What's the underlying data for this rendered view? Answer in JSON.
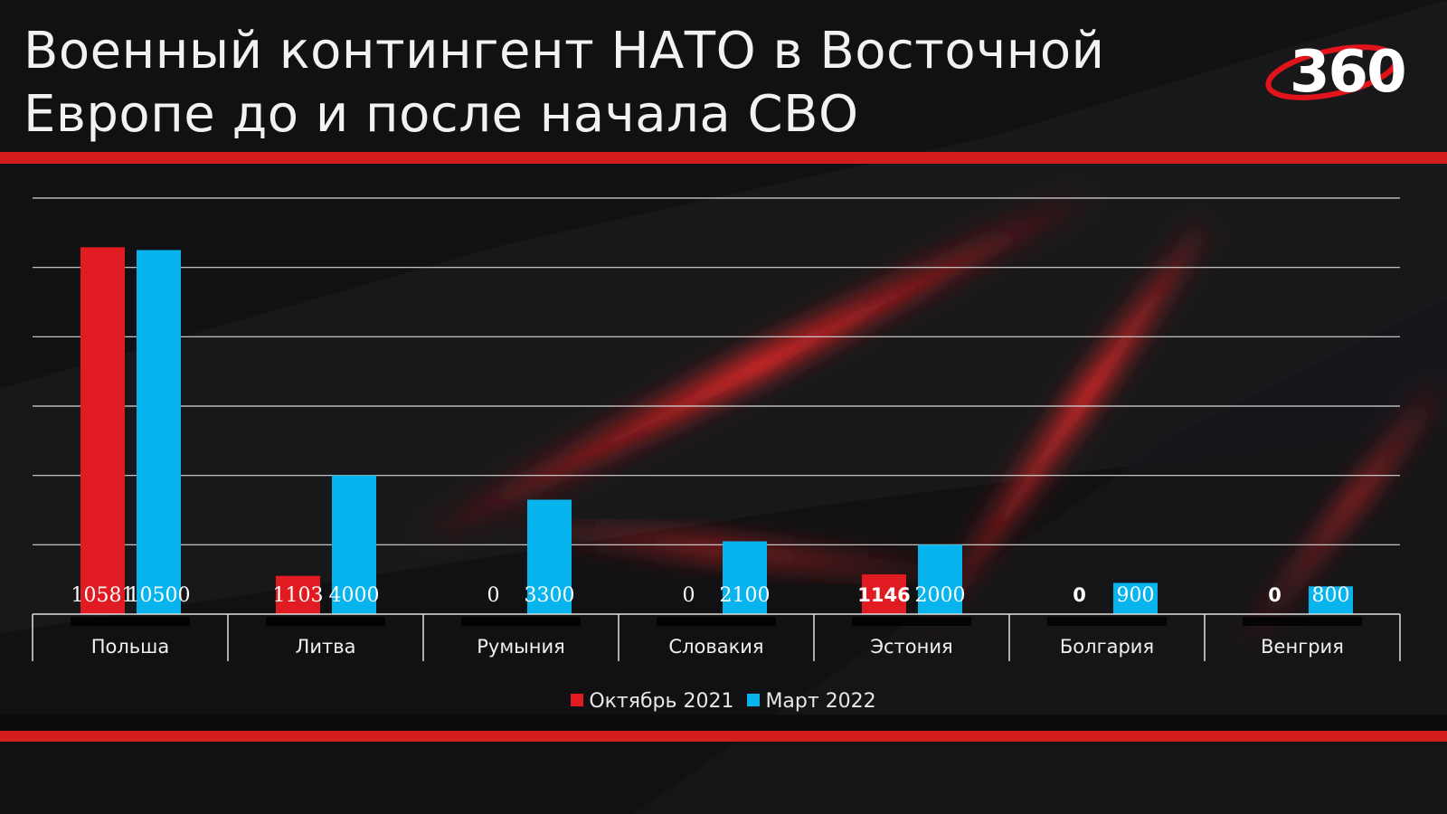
{
  "header": {
    "title_line1": "Военный контингент НАТО в Восточной",
    "title_line2": "Европе до и после начала СВО",
    "logo_text": "360"
  },
  "colors": {
    "series_oct_2021": "#e11b22",
    "series_mar_2022": "#08b4ee",
    "accent_red": "#d41e1e",
    "background": "#111113"
  },
  "chart_data": {
    "type": "bar",
    "title": "Военный контингент НАТО в Восточной Европе до и после начала СВО",
    "categories": [
      "Польша",
      "Литва",
      "Румыния",
      "Словакия",
      "Эстония",
      "Болгария",
      "Венгрия"
    ],
    "series": [
      {
        "name": "Октябрь 2021",
        "values": [
          10581,
          1103,
          0,
          0,
          1146,
          0,
          0
        ]
      },
      {
        "name": "Март 2022",
        "values": [
          10500,
          4000,
          3300,
          2100,
          2000,
          900,
          800
        ]
      }
    ],
    "bar_labels": {
      "Октябрь 2021": [
        "10581",
        "1103",
        "0",
        "0",
        "1146",
        "0",
        "0"
      ],
      "Март 2022": [
        "10500",
        "4000",
        "3300",
        "2100",
        "2000",
        "900",
        "800"
      ]
    },
    "xlabel": "",
    "ylabel": "",
    "ylim": [
      0,
      12000
    ],
    "grid": true,
    "legend_position": "bottom-center"
  }
}
